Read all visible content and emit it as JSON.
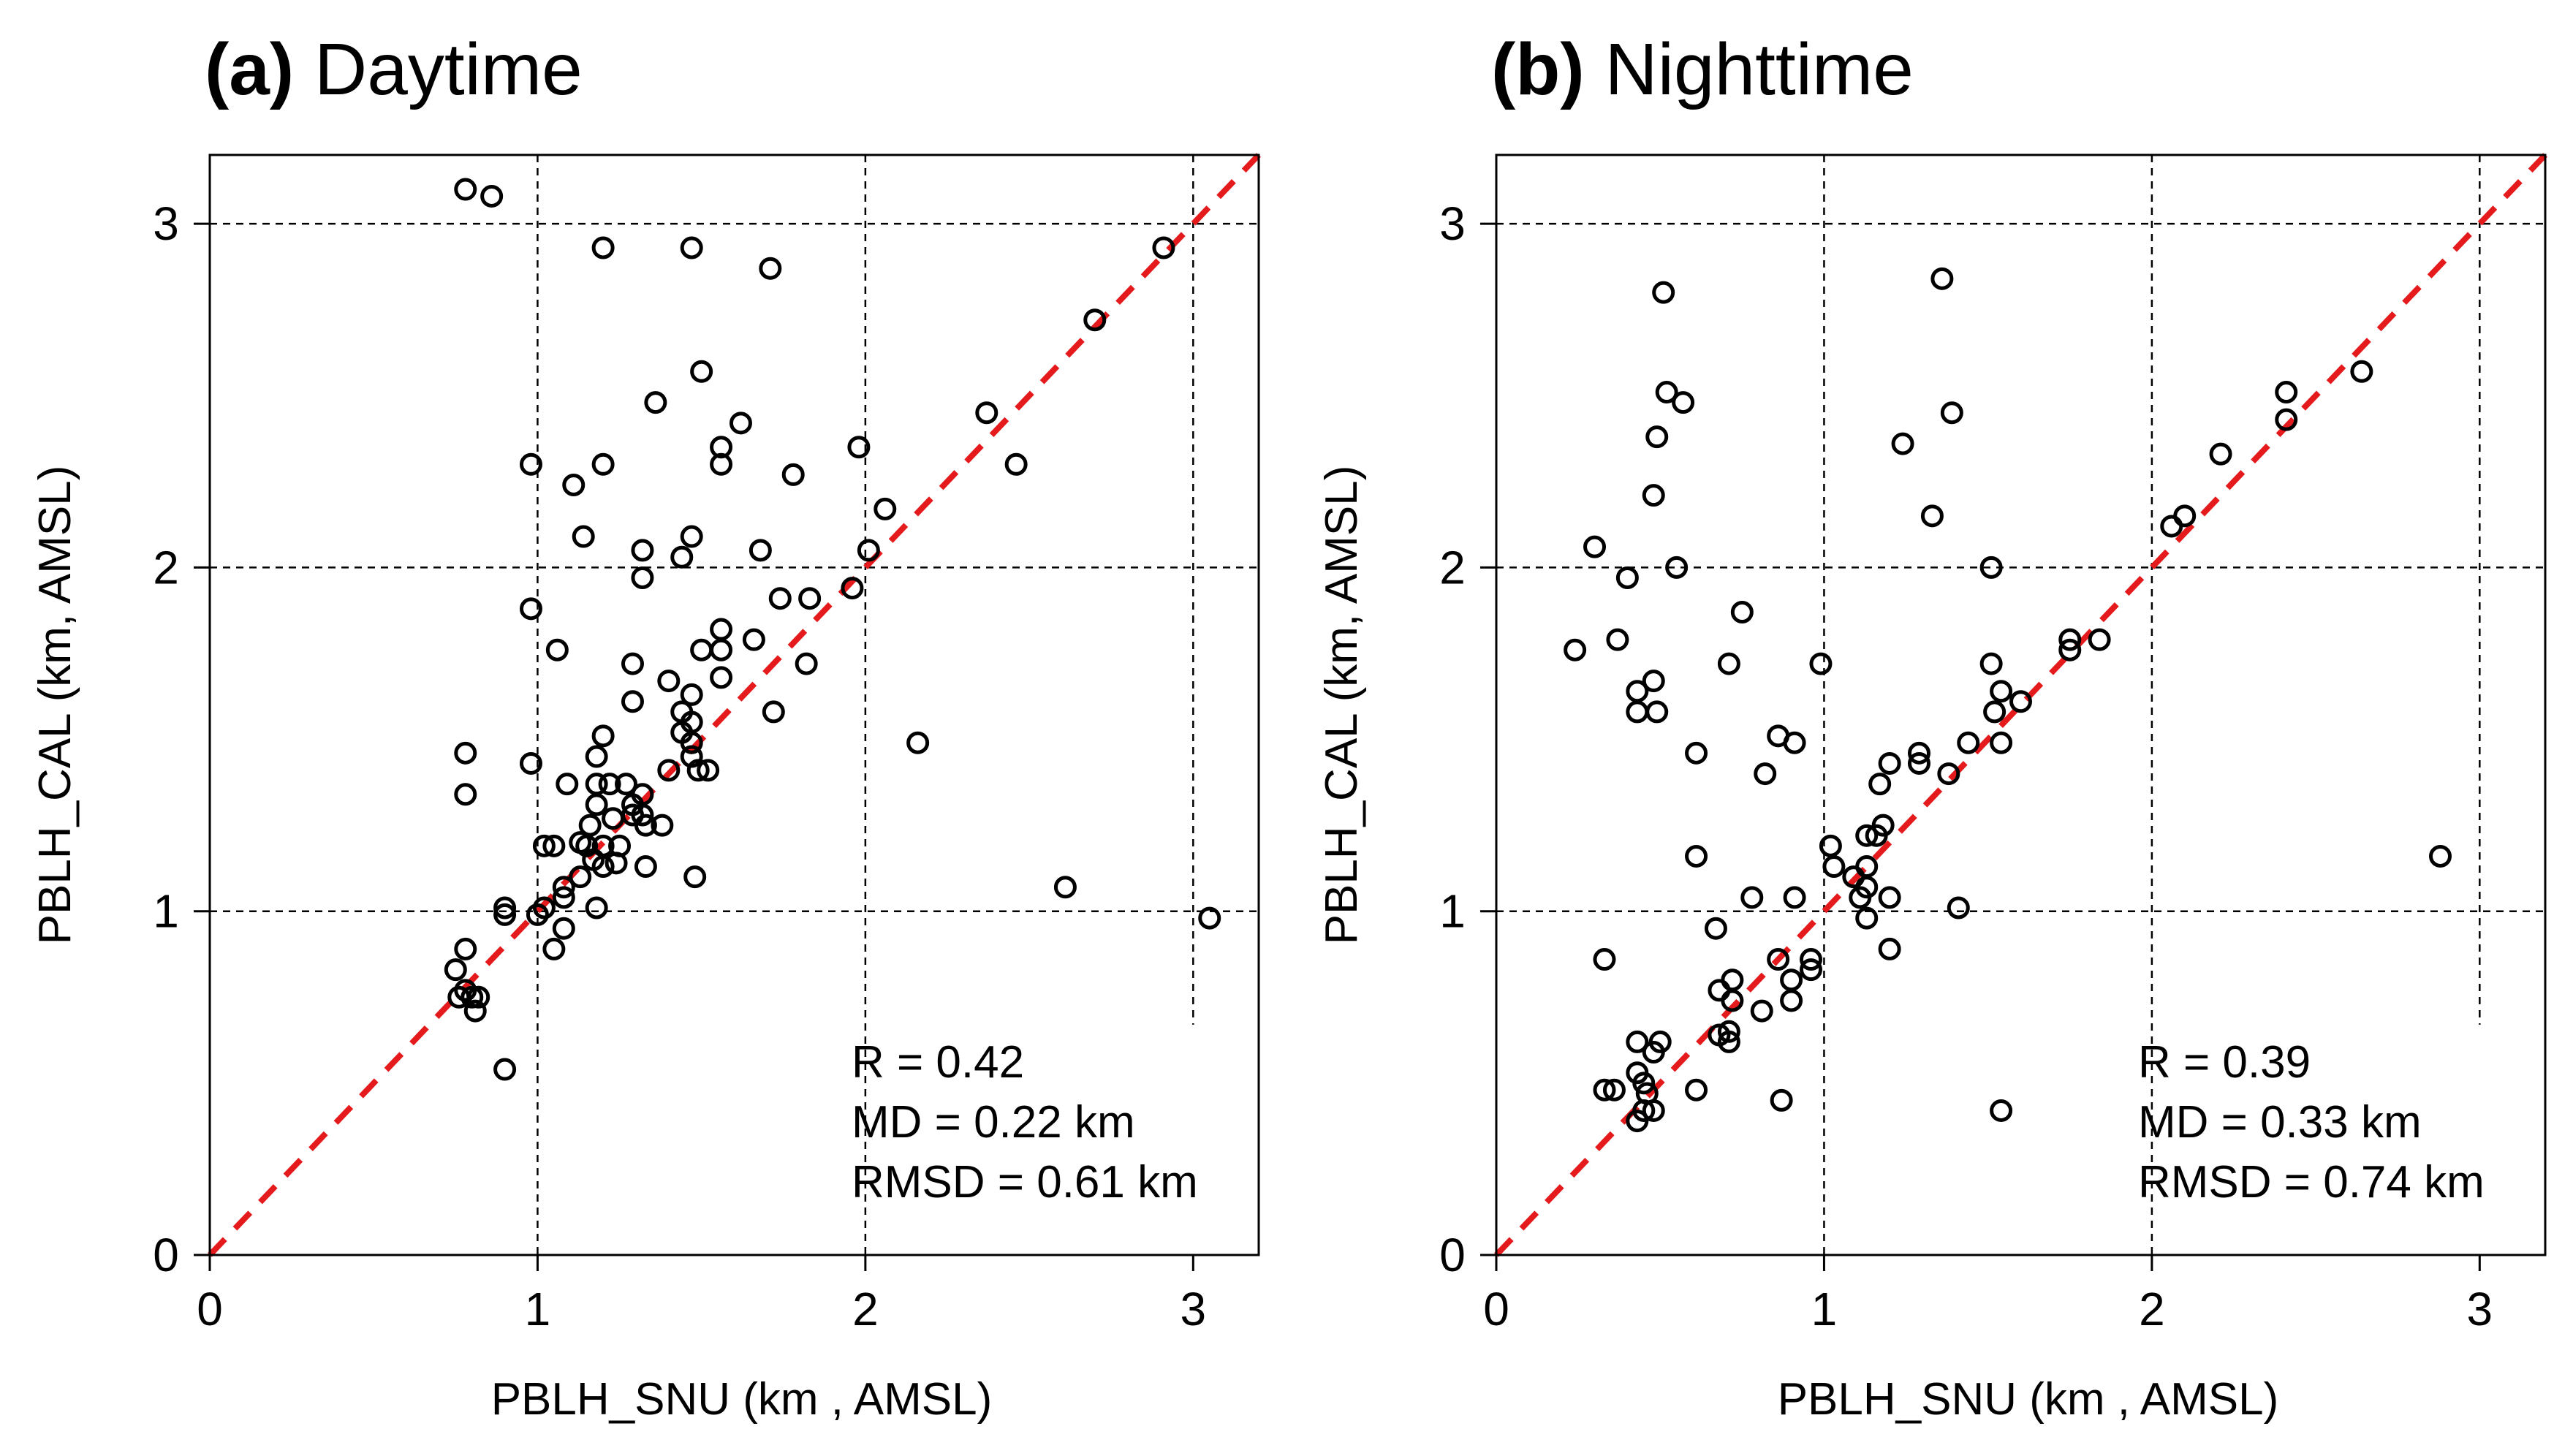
{
  "chart_data": [
    {
      "type": "scatter",
      "panel_label": "(a)",
      "title": "Daytime",
      "xlabel": "PBLH_SNU (km , AMSL)",
      "ylabel": "PBLH_CAL (km, AMSL)",
      "xlim": [
        0,
        3.2
      ],
      "ylim": [
        0,
        3.2
      ],
      "xticks": [
        "0",
        "1",
        "2",
        "3"
      ],
      "yticks": [
        "0",
        "1",
        "2",
        "3"
      ],
      "grid": "dashed lines at 1, 2, 3",
      "reference_line": "1:1 line, red dashed",
      "marker_color": "#000000",
      "line_color": "#e41a1c",
      "stats": [
        "R = 0.42",
        "MD = 0.22 km",
        "RMSD = 0.61 km"
      ],
      "points": [
        [
          0.78,
          3.1
        ],
        [
          0.86,
          3.08
        ],
        [
          1.2,
          2.93
        ],
        [
          1.47,
          2.93
        ],
        [
          1.71,
          2.87
        ],
        [
          2.91,
          2.93
        ],
        [
          2.7,
          2.72
        ],
        [
          1.5,
          2.57
        ],
        [
          1.36,
          2.48
        ],
        [
          2.37,
          2.45
        ],
        [
          1.62,
          2.42
        ],
        [
          0.98,
          2.3
        ],
        [
          1.2,
          2.3
        ],
        [
          1.56,
          2.35
        ],
        [
          1.56,
          2.3
        ],
        [
          1.98,
          2.35
        ],
        [
          2.46,
          2.3
        ],
        [
          1.11,
          2.24
        ],
        [
          1.78,
          2.27
        ],
        [
          2.06,
          2.17
        ],
        [
          1.14,
          2.09
        ],
        [
          1.32,
          2.05
        ],
        [
          1.47,
          2.09
        ],
        [
          1.68,
          2.05
        ],
        [
          2.01,
          2.05
        ],
        [
          1.32,
          1.97
        ],
        [
          1.44,
          2.03
        ],
        [
          1.96,
          1.94
        ],
        [
          1.74,
          1.91
        ],
        [
          1.83,
          1.91
        ],
        [
          0.98,
          1.88
        ],
        [
          1.06,
          1.76
        ],
        [
          1.29,
          1.72
        ],
        [
          1.4,
          1.67
        ],
        [
          1.5,
          1.76
        ],
        [
          1.56,
          1.82
        ],
        [
          1.56,
          1.76
        ],
        [
          1.56,
          1.68
        ],
        [
          1.66,
          1.79
        ],
        [
          1.82,
          1.72
        ],
        [
          1.29,
          1.61
        ],
        [
          1.44,
          1.58
        ],
        [
          1.47,
          1.63
        ],
        [
          1.72,
          1.58
        ],
        [
          1.2,
          1.51
        ],
        [
          1.44,
          1.52
        ],
        [
          1.47,
          1.55
        ],
        [
          1.47,
          1.49
        ],
        [
          1.18,
          1.45
        ],
        [
          1.47,
          1.45
        ],
        [
          1.49,
          1.41
        ],
        [
          1.52,
          1.41
        ],
        [
          0.78,
          1.46
        ],
        [
          0.98,
          1.43
        ],
        [
          1.09,
          1.37
        ],
        [
          1.4,
          1.41
        ],
        [
          2.16,
          1.49
        ],
        [
          0.78,
          1.34
        ],
        [
          1.18,
          1.37
        ],
        [
          1.18,
          1.31
        ],
        [
          1.22,
          1.37
        ],
        [
          1.27,
          1.37
        ],
        [
          1.32,
          1.34
        ],
        [
          1.29,
          1.31
        ],
        [
          1.16,
          1.25
        ],
        [
          1.23,
          1.27
        ],
        [
          1.29,
          1.28
        ],
        [
          1.32,
          1.28
        ],
        [
          1.38,
          1.25
        ],
        [
          1.33,
          1.25
        ],
        [
          1.13,
          1.2
        ],
        [
          1.02,
          1.19
        ],
        [
          1.05,
          1.19
        ],
        [
          1.15,
          1.19
        ],
        [
          1.2,
          1.19
        ],
        [
          1.25,
          1.19
        ],
        [
          1.17,
          1.15
        ],
        [
          1.24,
          1.14
        ],
        [
          1.33,
          1.13
        ],
        [
          1.48,
          1.1
        ],
        [
          1.08,
          1.07
        ],
        [
          1.13,
          1.1
        ],
        [
          1.2,
          1.13
        ],
        [
          2.61,
          1.07
        ],
        [
          0.9,
          1.01
        ],
        [
          1.0,
          0.99
        ],
        [
          1.02,
          1.01
        ],
        [
          1.08,
          1.04
        ],
        [
          1.18,
          1.01
        ],
        [
          0.9,
          0.99
        ],
        [
          3.05,
          0.98
        ],
        [
          1.08,
          0.95
        ],
        [
          1.05,
          0.89
        ],
        [
          0.78,
          0.89
        ],
        [
          0.75,
          0.83
        ],
        [
          0.76,
          0.75
        ],
        [
          0.8,
          0.75
        ],
        [
          0.82,
          0.75
        ],
        [
          0.78,
          0.77
        ],
        [
          0.81,
          0.71
        ],
        [
          0.9,
          0.54
        ]
      ]
    },
    {
      "type": "scatter",
      "panel_label": "(b)",
      "title": "Nighttime",
      "xlabel": "PBLH_SNU (km , AMSL)",
      "ylabel": "PBLH_CAL (km, AMSL)",
      "xlim": [
        0,
        3.2
      ],
      "ylim": [
        0,
        3.2
      ],
      "xticks": [
        "0",
        "1",
        "2",
        "3"
      ],
      "yticks": [
        "0",
        "1",
        "2",
        "3"
      ],
      "grid": "dashed lines at 1, 2, 3",
      "reference_line": "1:1 line, red dashed",
      "marker_color": "#000000",
      "line_color": "#e41a1c",
      "stats": [
        "R = 0.39",
        "MD = 0.33 km",
        "RMSD = 0.74 km"
      ],
      "points": [
        [
          1.36,
          2.84
        ],
        [
          0.51,
          2.8
        ],
        [
          0.52,
          2.51
        ],
        [
          0.57,
          2.48
        ],
        [
          0.49,
          2.38
        ],
        [
          1.39,
          2.45
        ],
        [
          2.64,
          2.57
        ],
        [
          2.41,
          2.51
        ],
        [
          2.41,
          2.43
        ],
        [
          1.24,
          2.36
        ],
        [
          2.21,
          2.33
        ],
        [
          0.48,
          2.21
        ],
        [
          1.33,
          2.15
        ],
        [
          2.1,
          2.15
        ],
        [
          2.06,
          2.12
        ],
        [
          0.3,
          2.06
        ],
        [
          0.55,
          2.0
        ],
        [
          1.51,
          2.0
        ],
        [
          0.4,
          1.97
        ],
        [
          0.75,
          1.87
        ],
        [
          0.37,
          1.79
        ],
        [
          1.75,
          1.79
        ],
        [
          1.84,
          1.79
        ],
        [
          1.75,
          1.76
        ],
        [
          0.24,
          1.76
        ],
        [
          0.71,
          1.72
        ],
        [
          0.99,
          1.72
        ],
        [
          1.51,
          1.72
        ],
        [
          0.48,
          1.67
        ],
        [
          0.43,
          1.64
        ],
        [
          1.54,
          1.64
        ],
        [
          1.6,
          1.61
        ],
        [
          0.43,
          1.58
        ],
        [
          0.49,
          1.58
        ],
        [
          1.52,
          1.58
        ],
        [
          0.86,
          1.51
        ],
        [
          0.61,
          1.46
        ],
        [
          0.91,
          1.49
        ],
        [
          1.29,
          1.46
        ],
        [
          1.29,
          1.43
        ],
        [
          1.2,
          1.43
        ],
        [
          1.44,
          1.49
        ],
        [
          1.54,
          1.49
        ],
        [
          0.82,
          1.4
        ],
        [
          1.38,
          1.4
        ],
        [
          1.17,
          1.37
        ],
        [
          1.18,
          1.25
        ],
        [
          1.13,
          1.22
        ],
        [
          1.16,
          1.22
        ],
        [
          1.02,
          1.19
        ],
        [
          0.61,
          1.16
        ],
        [
          1.03,
          1.13
        ],
        [
          1.13,
          1.13
        ],
        [
          1.09,
          1.1
        ],
        [
          1.13,
          1.07
        ],
        [
          1.11,
          1.04
        ],
        [
          1.2,
          1.04
        ],
        [
          2.88,
          1.16
        ],
        [
          0.78,
          1.04
        ],
        [
          0.91,
          1.04
        ],
        [
          1.41,
          1.01
        ],
        [
          1.13,
          0.98
        ],
        [
          0.67,
          0.95
        ],
        [
          1.2,
          0.89
        ],
        [
          0.33,
          0.86
        ],
        [
          0.86,
          0.86
        ],
        [
          0.96,
          0.86
        ],
        [
          0.96,
          0.83
        ],
        [
          0.72,
          0.8
        ],
        [
          0.9,
          0.8
        ],
        [
          0.68,
          0.77
        ],
        [
          0.72,
          0.74
        ],
        [
          0.9,
          0.74
        ],
        [
          0.81,
          0.71
        ],
        [
          0.68,
          0.64
        ],
        [
          0.71,
          0.65
        ],
        [
          0.71,
          0.62
        ],
        [
          0.43,
          0.62
        ],
        [
          0.48,
          0.59
        ],
        [
          0.5,
          0.62
        ],
        [
          0.43,
          0.53
        ],
        [
          0.45,
          0.5
        ],
        [
          0.46,
          0.47
        ],
        [
          0.33,
          0.48
        ],
        [
          0.36,
          0.48
        ],
        [
          0.61,
          0.48
        ],
        [
          0.87,
          0.45
        ],
        [
          0.45,
          0.42
        ],
        [
          0.48,
          0.42
        ],
        [
          0.43,
          0.39
        ],
        [
          1.54,
          0.42
        ]
      ]
    }
  ]
}
